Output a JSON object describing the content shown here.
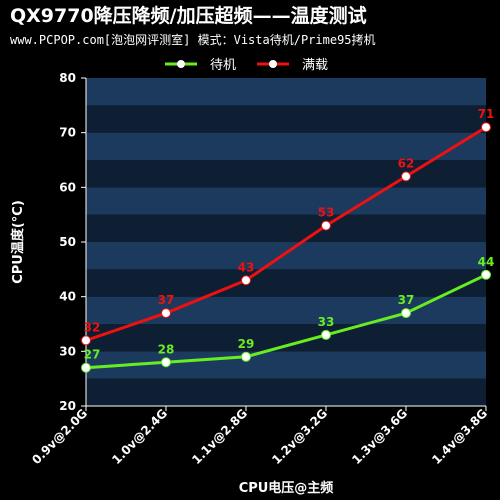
{
  "header": {
    "title": "QX9770降压降频/加压超频——温度测试",
    "subtitle": "www.PCPOP.com[泡泡网评测室] 模式：Vista待机/Prime95拷机"
  },
  "colors": {
    "background": "#000000",
    "plot_band_dark": "#0e1e33",
    "plot_band_light": "#1c3a5e",
    "idle": "#66ee22",
    "load": "#ee1111"
  },
  "chart_data": {
    "type": "line",
    "categories": [
      "0.9v@2.0G",
      "1.0v@2.4G",
      "1.1v@2.8G",
      "1.2v@3.2G",
      "1.3v@3.6G",
      "1.4v@3.8G"
    ],
    "series": [
      {
        "name": "待机",
        "color": "#66ee22",
        "values": [
          27,
          28,
          29,
          33,
          37,
          44
        ]
      },
      {
        "name": "满载",
        "color": "#ee1111",
        "values": [
          32,
          37,
          43,
          53,
          62,
          71
        ]
      }
    ],
    "xlabel": "CPU电压@主频",
    "ylabel": "CPU温度(°C)",
    "ylim": [
      20,
      80
    ],
    "yticks": [
      20,
      30,
      40,
      50,
      60,
      70,
      80
    ],
    "legend_position": "top",
    "grid": false
  }
}
